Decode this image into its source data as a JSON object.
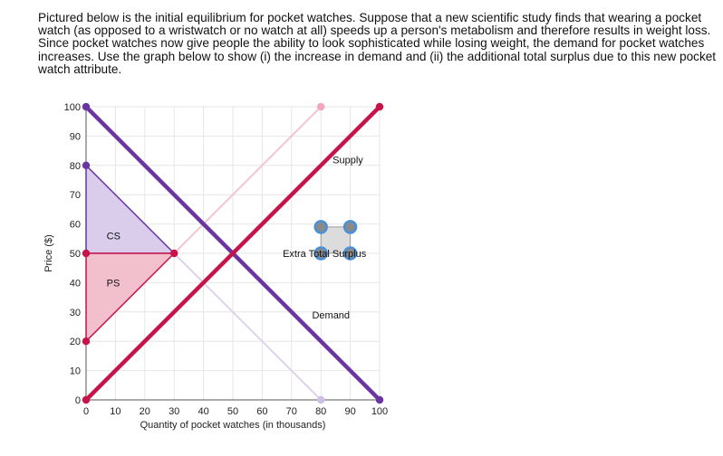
{
  "prompt": "Pictured below is the initial equilibrium for pocket watches. Suppose that a new scientific study finds that wearing a pocket watch (as opposed to a wristwatch or no watch at all) speeds up a person's metabolism and therefore results in weight loss. Since pocket watches now give people the ability to look sophisticated while losing weight, the demand for pocket watches increases. Use the graph below to show (i) the increase in demand and (ii) the additional total surplus due to this new pocket watch attribute.",
  "chart_data": {
    "type": "line",
    "xlabel": "Quantity of pocket watches (in thousands)",
    "ylabel": "Price ($)",
    "xlim": [
      0,
      100
    ],
    "ylim": [
      0,
      100
    ],
    "x_ticks": [
      "0",
      "10",
      "20",
      "30",
      "40",
      "50",
      "60",
      "70",
      "80",
      "90",
      "100"
    ],
    "y_ticks": [
      "0",
      "10",
      "20",
      "30",
      "40",
      "50",
      "60",
      "70",
      "80",
      "90",
      "100"
    ],
    "grid": true,
    "series": [
      {
        "name": "Demand",
        "color": "#6a35a0",
        "points": [
          [
            0,
            100
          ],
          [
            100,
            0
          ]
        ]
      },
      {
        "name": "Supply",
        "color": "#c8134a",
        "points": [
          [
            0,
            0
          ],
          [
            100,
            100
          ]
        ]
      }
    ],
    "faint_lines": [
      {
        "color": "#f4c4d2",
        "points": [
          [
            30,
            50
          ],
          [
            80,
            100
          ]
        ]
      },
      {
        "color": "#ddd4ec",
        "points": [
          [
            30,
            50
          ],
          [
            80,
            0
          ]
        ]
      }
    ],
    "regions": [
      {
        "label": "CS",
        "fill": "#d9cdeb",
        "stroke": "#6a35a0",
        "points": [
          [
            0,
            80
          ],
          [
            0,
            50
          ],
          [
            30,
            50
          ]
        ]
      },
      {
        "label": "PS",
        "fill": "#f2bfcd",
        "stroke": "#c8134a",
        "points": [
          [
            0,
            50
          ],
          [
            0,
            20
          ],
          [
            30,
            50
          ]
        ]
      }
    ],
    "markers": [
      {
        "x": 0,
        "y": 100,
        "color": "#6a35a0"
      },
      {
        "x": 100,
        "y": 0,
        "color": "#6a35a0"
      },
      {
        "x": 0,
        "y": 0,
        "color": "#c8134a"
      },
      {
        "x": 100,
        "y": 100,
        "color": "#c8134a"
      },
      {
        "x": 0,
        "y": 80,
        "color": "#6a35a0"
      },
      {
        "x": 0,
        "y": 50,
        "color": "#c8134a"
      },
      {
        "x": 0,
        "y": 20,
        "color": "#c8134a"
      },
      {
        "x": 30,
        "y": 50,
        "color": "#c8134a"
      },
      {
        "x": 80,
        "y": 100,
        "color": "#f4a6bd"
      },
      {
        "x": 80,
        "y": 0,
        "color": "#cdbfe3"
      }
    ],
    "annotations": [
      {
        "text": "CS",
        "x": 7,
        "y": 56
      },
      {
        "text": "PS",
        "x": 7,
        "y": 40
      },
      {
        "text": "Supply",
        "x": 84,
        "y": 82
      },
      {
        "text": "Demand",
        "x": 77,
        "y": 29
      },
      {
        "text": "Extra Total Surplus",
        "x": 67,
        "y": 50
      }
    ],
    "widget": {
      "label": "Extra Total Surplus",
      "x": [
        80,
        90
      ],
      "y": [
        59,
        50
      ]
    }
  }
}
